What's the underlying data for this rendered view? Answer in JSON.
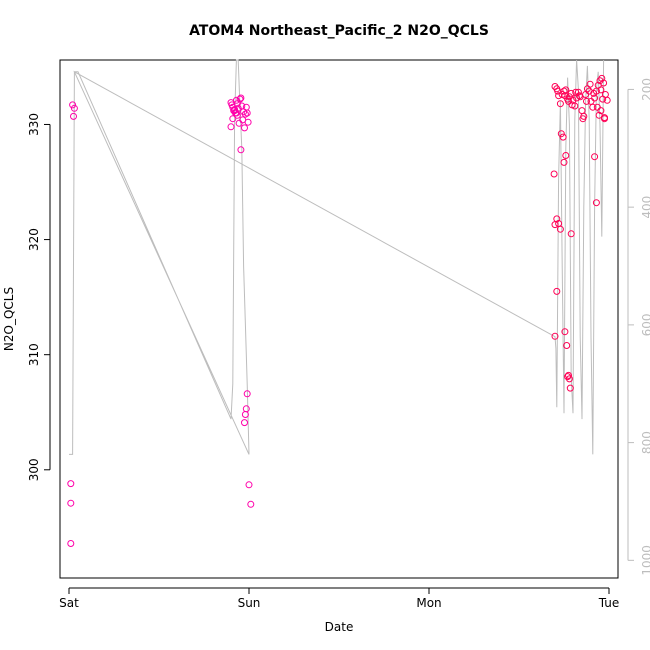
{
  "chart_data": {
    "type": "scatter",
    "title": "ATOM4 Northeast_Pacific_2 N2O_QCLS",
    "xlabel": "Date",
    "ylabel": "N2O_QCLS",
    "x_ticks": [
      "Sat",
      "Sun",
      "Mon",
      "Tue"
    ],
    "x_range_days": [
      -0.05,
      3.05
    ],
    "y_ticks": [
      300,
      310,
      320,
      330
    ],
    "ylim": [
      290.6,
      335.6
    ],
    "y2_ticks": [
      200,
      400,
      600,
      800,
      1000
    ],
    "y2lim": [
      1030,
      150
    ],
    "grid": false,
    "colors": {
      "points": "#ff00aa",
      "points_dense": "#ff0055",
      "pressure_line": "#bdbdbd"
    },
    "series": [
      {
        "kind": "points",
        "x_days": [
          0.02,
          0.03,
          0.025,
          0.01,
          0.01,
          0.01,
          0.9,
          0.91,
          0.92,
          0.93,
          0.935,
          0.94,
          0.945,
          0.95,
          0.955,
          0.96,
          0.965,
          0.97,
          0.975,
          0.98,
          0.985,
          0.99,
          0.995,
          0.955,
          0.9,
          0.905,
          0.91,
          0.915,
          0.92,
          0.925,
          0.93,
          0.935,
          0.99,
          0.98,
          0.975,
          0.985,
          1.0,
          1.01,
          2.7,
          2.71,
          2.72,
          2.73,
          2.74,
          2.75,
          2.76,
          2.77,
          2.78,
          2.79,
          2.8,
          2.81,
          2.82,
          2.83,
          2.84,
          2.85,
          2.86,
          2.87,
          2.88,
          2.89,
          2.9,
          2.91,
          2.92,
          2.93,
          2.94,
          2.95,
          2.96,
          2.97,
          2.98,
          2.99,
          2.715,
          2.735,
          2.755,
          2.775,
          2.795,
          2.815,
          2.835,
          2.855,
          2.875,
          2.895,
          2.915,
          2.935,
          2.955,
          2.975,
          2.71,
          2.72,
          2.73,
          2.71,
          2.7,
          2.695,
          2.7,
          2.745,
          2.75,
          2.76,
          2.755,
          2.77,
          2.765,
          2.78,
          2.775,
          2.785,
          2.79,
          2.92,
          2.93,
          2.955,
          2.945,
          2.965,
          2.975
        ],
        "y": [
          331.7,
          331.4,
          330.7,
          298.8,
          297.1,
          293.6,
          329.8,
          330.5,
          331.2,
          331.0,
          330.8,
          331.4,
          330.1,
          332.2,
          332.3,
          331.6,
          330.4,
          331.1,
          329.7,
          330.9,
          331.5,
          331.0,
          330.2,
          327.8,
          331.9,
          331.7,
          331.5,
          331.2,
          331.3,
          331.0,
          332.1,
          331.8,
          306.6,
          304.8,
          304.1,
          305.3,
          298.7,
          297.0,
          333.3,
          333.1,
          332.5,
          331.8,
          332.6,
          332.9,
          333.0,
          332.2,
          332.4,
          332.7,
          332.1,
          331.6,
          332.3,
          332.8,
          332.4,
          331.2,
          330.7,
          332.6,
          333.1,
          332.9,
          332.0,
          331.5,
          332.3,
          332.9,
          333.4,
          333.8,
          334.0,
          333.6,
          332.6,
          332.1,
          332.9,
          329.2,
          332.5,
          332.0,
          331.7,
          332.8,
          332.5,
          330.5,
          332.0,
          333.5,
          332.7,
          331.5,
          333.0,
          330.6,
          321.8,
          321.4,
          320.9,
          315.5,
          311.6,
          325.7,
          321.3,
          328.9,
          326.7,
          327.3,
          312.0,
          308.1,
          310.8,
          307.9,
          308.2,
          307.1,
          320.5,
          327.2,
          323.2,
          331.2,
          330.8,
          332.2,
          330.5
        ]
      },
      {
        "kind": "line",
        "x_days": [
          0.0,
          0.02,
          0.03,
          0.05,
          0.9,
          0.91,
          0.92,
          0.93,
          0.94,
          0.95,
          0.96,
          0.97,
          0.98,
          0.99,
          1.0,
          0.03,
          2.7,
          2.705,
          2.71,
          2.72,
          2.73,
          2.74,
          2.75,
          2.76,
          2.77,
          2.78,
          2.79,
          2.8,
          2.81,
          2.82,
          2.83,
          2.84,
          2.85,
          2.86,
          2.87,
          2.88,
          2.89,
          2.9,
          2.91,
          2.92,
          2.93,
          2.94,
          2.95,
          2.96,
          2.97
        ],
        "pressure": [
          820,
          820,
          170,
          170,
          760,
          700,
          250,
          150,
          150,
          230,
          300,
          500,
          600,
          700,
          820,
          170,
          620,
          640,
          740,
          350,
          220,
          500,
          750,
          300,
          180,
          260,
          690,
          750,
          250,
          150,
          200,
          620,
          760,
          400,
          220,
          160,
          250,
          620,
          820,
          400,
          200,
          170,
          260,
          450,
          150
        ]
      }
    ]
  }
}
